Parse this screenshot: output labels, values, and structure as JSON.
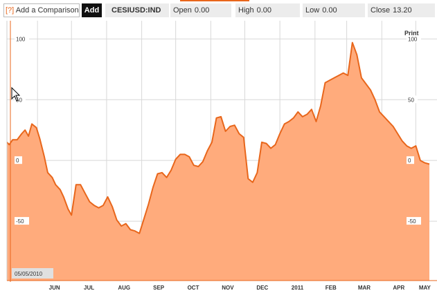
{
  "toolbar": {
    "help_label": "[?]",
    "compare_label": "Add a Comparison",
    "add_label": "Add",
    "ticker": "CESIUSD:IND",
    "open_label": "Open",
    "open_value": "0.00",
    "high_label": "High",
    "high_value": "0.00",
    "low_label": "Low",
    "low_value": "0.00",
    "close_label": "Close",
    "close_value": "13.20"
  },
  "print_label": "Print",
  "date_readout": "05/05/2010",
  "colors": {
    "line": "#e8661b",
    "fill": "#ffab7c",
    "axis": "#e8661b",
    "grid": "#d8d8d8",
    "accent": "#e8661b"
  },
  "chart_data": {
    "type": "area",
    "title": "",
    "xlabel": "",
    "ylabel": "",
    "ylim": [
      -100,
      115
    ],
    "grid": true,
    "x_start": "2010-05-05",
    "x_end": "2011-05-13",
    "x_ticks": [
      {
        "label": "JUN",
        "date": "2010-06-01"
      },
      {
        "label": "JUL",
        "date": "2010-07-01"
      },
      {
        "label": "AUG",
        "date": "2010-08-01"
      },
      {
        "label": "SEP",
        "date": "2010-09-01"
      },
      {
        "label": "OCT",
        "date": "2010-10-01"
      },
      {
        "label": "NOV",
        "date": "2010-11-01"
      },
      {
        "label": "DEC",
        "date": "2010-12-01"
      },
      {
        "label": "2011",
        "date": "2011-01-01"
      },
      {
        "label": "FEB",
        "date": "2011-02-01"
      },
      {
        "label": "MAR",
        "date": "2011-03-01"
      },
      {
        "label": "APR",
        "date": "2011-04-01"
      },
      {
        "label": "MAY",
        "date": "2011-05-01"
      }
    ],
    "y_ticks": [
      {
        "label": "100",
        "value": 100
      },
      {
        "label": "50",
        "value": 50
      },
      {
        "label": "0",
        "value": 0
      },
      {
        "label": "-50",
        "value": -50
      }
    ],
    "series": [
      {
        "x": [
          "2010-05-05",
          "2010-05-07",
          "2010-05-10",
          "2010-05-14",
          "2010-05-18",
          "2010-05-21",
          "2010-05-24",
          "2010-05-27",
          "2010-05-31",
          "2010-06-03",
          "2010-06-07",
          "2010-06-10",
          "2010-06-14",
          "2010-06-17",
          "2010-06-21",
          "2010-06-24",
          "2010-06-28",
          "2010-07-01",
          "2010-07-05",
          "2010-07-09",
          "2010-07-13",
          "2010-07-17",
          "2010-07-21",
          "2010-07-25",
          "2010-07-29",
          "2010-08-02",
          "2010-08-06",
          "2010-08-10",
          "2010-08-14",
          "2010-08-18",
          "2010-08-22",
          "2010-08-26",
          "2010-08-30",
          "2010-09-03",
          "2010-09-07",
          "2010-09-11",
          "2010-09-15",
          "2010-09-19",
          "2010-09-23",
          "2010-09-27",
          "2010-10-01",
          "2010-10-05",
          "2010-10-09",
          "2010-10-13",
          "2010-10-17",
          "2010-10-21",
          "2010-10-25",
          "2010-10-29",
          "2010-11-02",
          "2010-11-06",
          "2010-11-10",
          "2010-11-14",
          "2010-11-18",
          "2010-11-22",
          "2010-11-26",
          "2010-11-30",
          "2010-12-04",
          "2010-12-08",
          "2010-12-12",
          "2010-12-16",
          "2010-12-20",
          "2010-12-24",
          "2010-12-28",
          "2011-01-01",
          "2011-01-05",
          "2011-01-09",
          "2011-01-13",
          "2011-01-17",
          "2011-01-21",
          "2011-01-25",
          "2011-01-29",
          "2011-02-02",
          "2011-02-06",
          "2011-02-10",
          "2011-02-14",
          "2011-02-18",
          "2011-02-22",
          "2011-02-26",
          "2011-03-02",
          "2011-03-06",
          "2011-03-10",
          "2011-03-14",
          "2011-03-18",
          "2011-03-22",
          "2011-03-26",
          "2011-03-30",
          "2011-04-03",
          "2011-04-07",
          "2011-04-11",
          "2011-04-15",
          "2011-04-19",
          "2011-04-23",
          "2011-04-27",
          "2011-05-01",
          "2011-05-05",
          "2011-05-09",
          "2011-05-13"
        ],
        "values": [
          15,
          13,
          17,
          17,
          22,
          25,
          20,
          30,
          27,
          18,
          3,
          -10,
          -14,
          -20,
          -24,
          -30,
          -40,
          -45,
          -20,
          -20,
          -27,
          -34,
          -37,
          -39,
          -37,
          -30,
          -38,
          -49,
          -54,
          -52,
          -57,
          -58,
          -60,
          -48,
          -36,
          -22,
          -11,
          -10,
          -14,
          -8,
          1,
          5,
          5,
          3,
          -4,
          -5,
          -1,
          8,
          15,
          35,
          36,
          24,
          28,
          29,
          22,
          19,
          -15,
          -18,
          -10,
          15,
          14,
          10,
          13,
          22,
          30,
          32,
          35,
          40,
          36,
          38,
          42,
          32,
          45,
          64,
          66,
          68,
          70,
          72,
          70,
          97,
          87,
          68,
          63,
          58,
          50,
          40,
          36,
          32,
          28,
          22,
          16,
          12,
          10,
          12,
          0,
          -2,
          -3
        ],
        "name": ""
      }
    ]
  }
}
